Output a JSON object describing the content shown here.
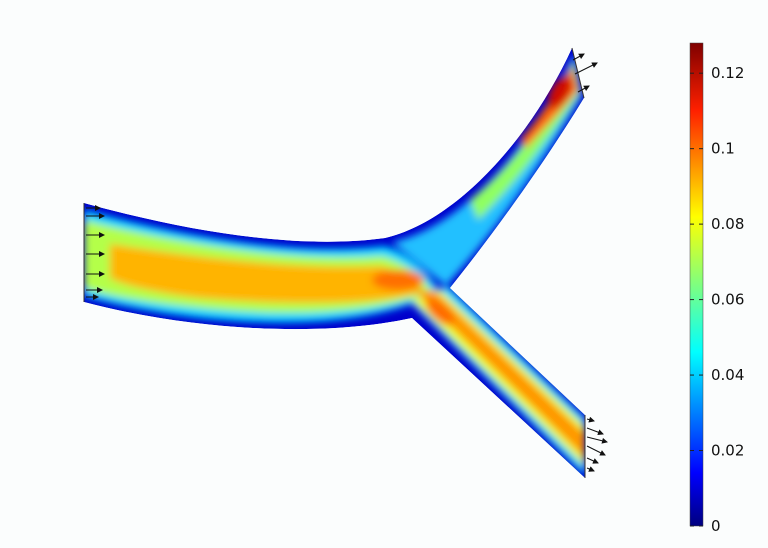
{
  "figure": {
    "type": "velocity-magnitude-field",
    "geometry": "bifurcating-channel",
    "colormap": "jet",
    "background": "#fbfdfd"
  },
  "colorbar": {
    "min": 0,
    "max": 0.128,
    "ticks": [
      {
        "value": 0,
        "label": "0"
      },
      {
        "value": 0.02,
        "label": "0.02"
      },
      {
        "value": 0.04,
        "label": "0.04"
      },
      {
        "value": 0.06,
        "label": "0.06"
      },
      {
        "value": 0.08,
        "label": "0.08"
      },
      {
        "value": 0.1,
        "label": "0.1"
      },
      {
        "value": 0.12,
        "label": "0.12"
      }
    ],
    "colors": [
      "#00007f",
      "#0000ff",
      "#0080ff",
      "#00ffff",
      "#7fff7f",
      "#ffff00",
      "#ff8000",
      "#ff0000",
      "#7f0000"
    ]
  },
  "arrows": {
    "inlet": "velocity-arrow-icon",
    "outlet_upper": "velocity-arrow-icon",
    "outlet_lower": "velocity-arrow-icon"
  }
}
